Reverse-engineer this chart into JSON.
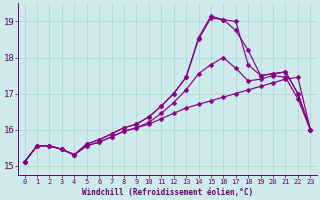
{
  "xlabel": "Windchill (Refroidissement éolien,°C)",
  "background_color": "#ceeaea",
  "line_color": "#880088",
  "grid_color": "#aad4d4",
  "axis_color": "#660066",
  "xlim": [
    -0.5,
    23.5
  ],
  "ylim": [
    14.75,
    19.5
  ],
  "xticks": [
    0,
    1,
    2,
    3,
    4,
    5,
    6,
    7,
    8,
    9,
    10,
    11,
    12,
    13,
    14,
    15,
    16,
    17,
    18,
    19,
    20,
    21,
    22,
    23
  ],
  "yticks": [
    15,
    16,
    17,
    18,
    19
  ],
  "line1_x": [
    0,
    1,
    2,
    3,
    4,
    5,
    6,
    7,
    8,
    9,
    10,
    11,
    12,
    13,
    14,
    15,
    16,
    17,
    18,
    19,
    20,
    21,
    22,
    23
  ],
  "line1_y": [
    15.1,
    15.55,
    15.55,
    15.45,
    15.3,
    15.55,
    15.65,
    15.8,
    15.95,
    16.05,
    16.15,
    16.3,
    16.45,
    16.6,
    16.7,
    16.8,
    16.9,
    17.0,
    17.1,
    17.2,
    17.3,
    17.4,
    17.45,
    16.0
  ],
  "line2_x": [
    0,
    1,
    2,
    3,
    4,
    5,
    6,
    7,
    8,
    9,
    10,
    11,
    12,
    13,
    14,
    15,
    16,
    17,
    18,
    19,
    20,
    21,
    22,
    23
  ],
  "line2_y": [
    15.1,
    15.55,
    15.55,
    15.45,
    15.3,
    15.55,
    15.65,
    15.8,
    15.95,
    16.05,
    16.2,
    16.45,
    16.75,
    17.1,
    17.55,
    17.8,
    18.0,
    17.7,
    17.35,
    17.4,
    17.5,
    17.45,
    16.85,
    16.0
  ],
  "line3_x": [
    0,
    1,
    2,
    3,
    4,
    5,
    6,
    7,
    8,
    9,
    10,
    11,
    12,
    13,
    14,
    15,
    16,
    17,
    18,
    19,
    20,
    21,
    22,
    23
  ],
  "line3_y": [
    15.1,
    15.55,
    15.55,
    15.45,
    15.3,
    15.6,
    15.72,
    15.88,
    16.05,
    16.15,
    16.35,
    16.65,
    17.0,
    17.45,
    18.5,
    19.1,
    19.05,
    18.75,
    18.2,
    17.5,
    17.55,
    17.6,
    17.0,
    16.0
  ],
  "line4_x": [
    0,
    1,
    2,
    3,
    4,
    5,
    6,
    7,
    8,
    9,
    10,
    11,
    12,
    13,
    14,
    15,
    16,
    17,
    18,
    19,
    20,
    21,
    22,
    23
  ],
  "line4_y": [
    15.1,
    15.55,
    15.55,
    15.45,
    15.3,
    15.6,
    15.72,
    15.88,
    16.05,
    16.15,
    16.35,
    16.65,
    17.0,
    17.45,
    18.55,
    19.15,
    19.05,
    19.0,
    17.8,
    17.5,
    17.55,
    17.6,
    17.0,
    16.0
  ],
  "marker": "D",
  "markersize": 2.5
}
